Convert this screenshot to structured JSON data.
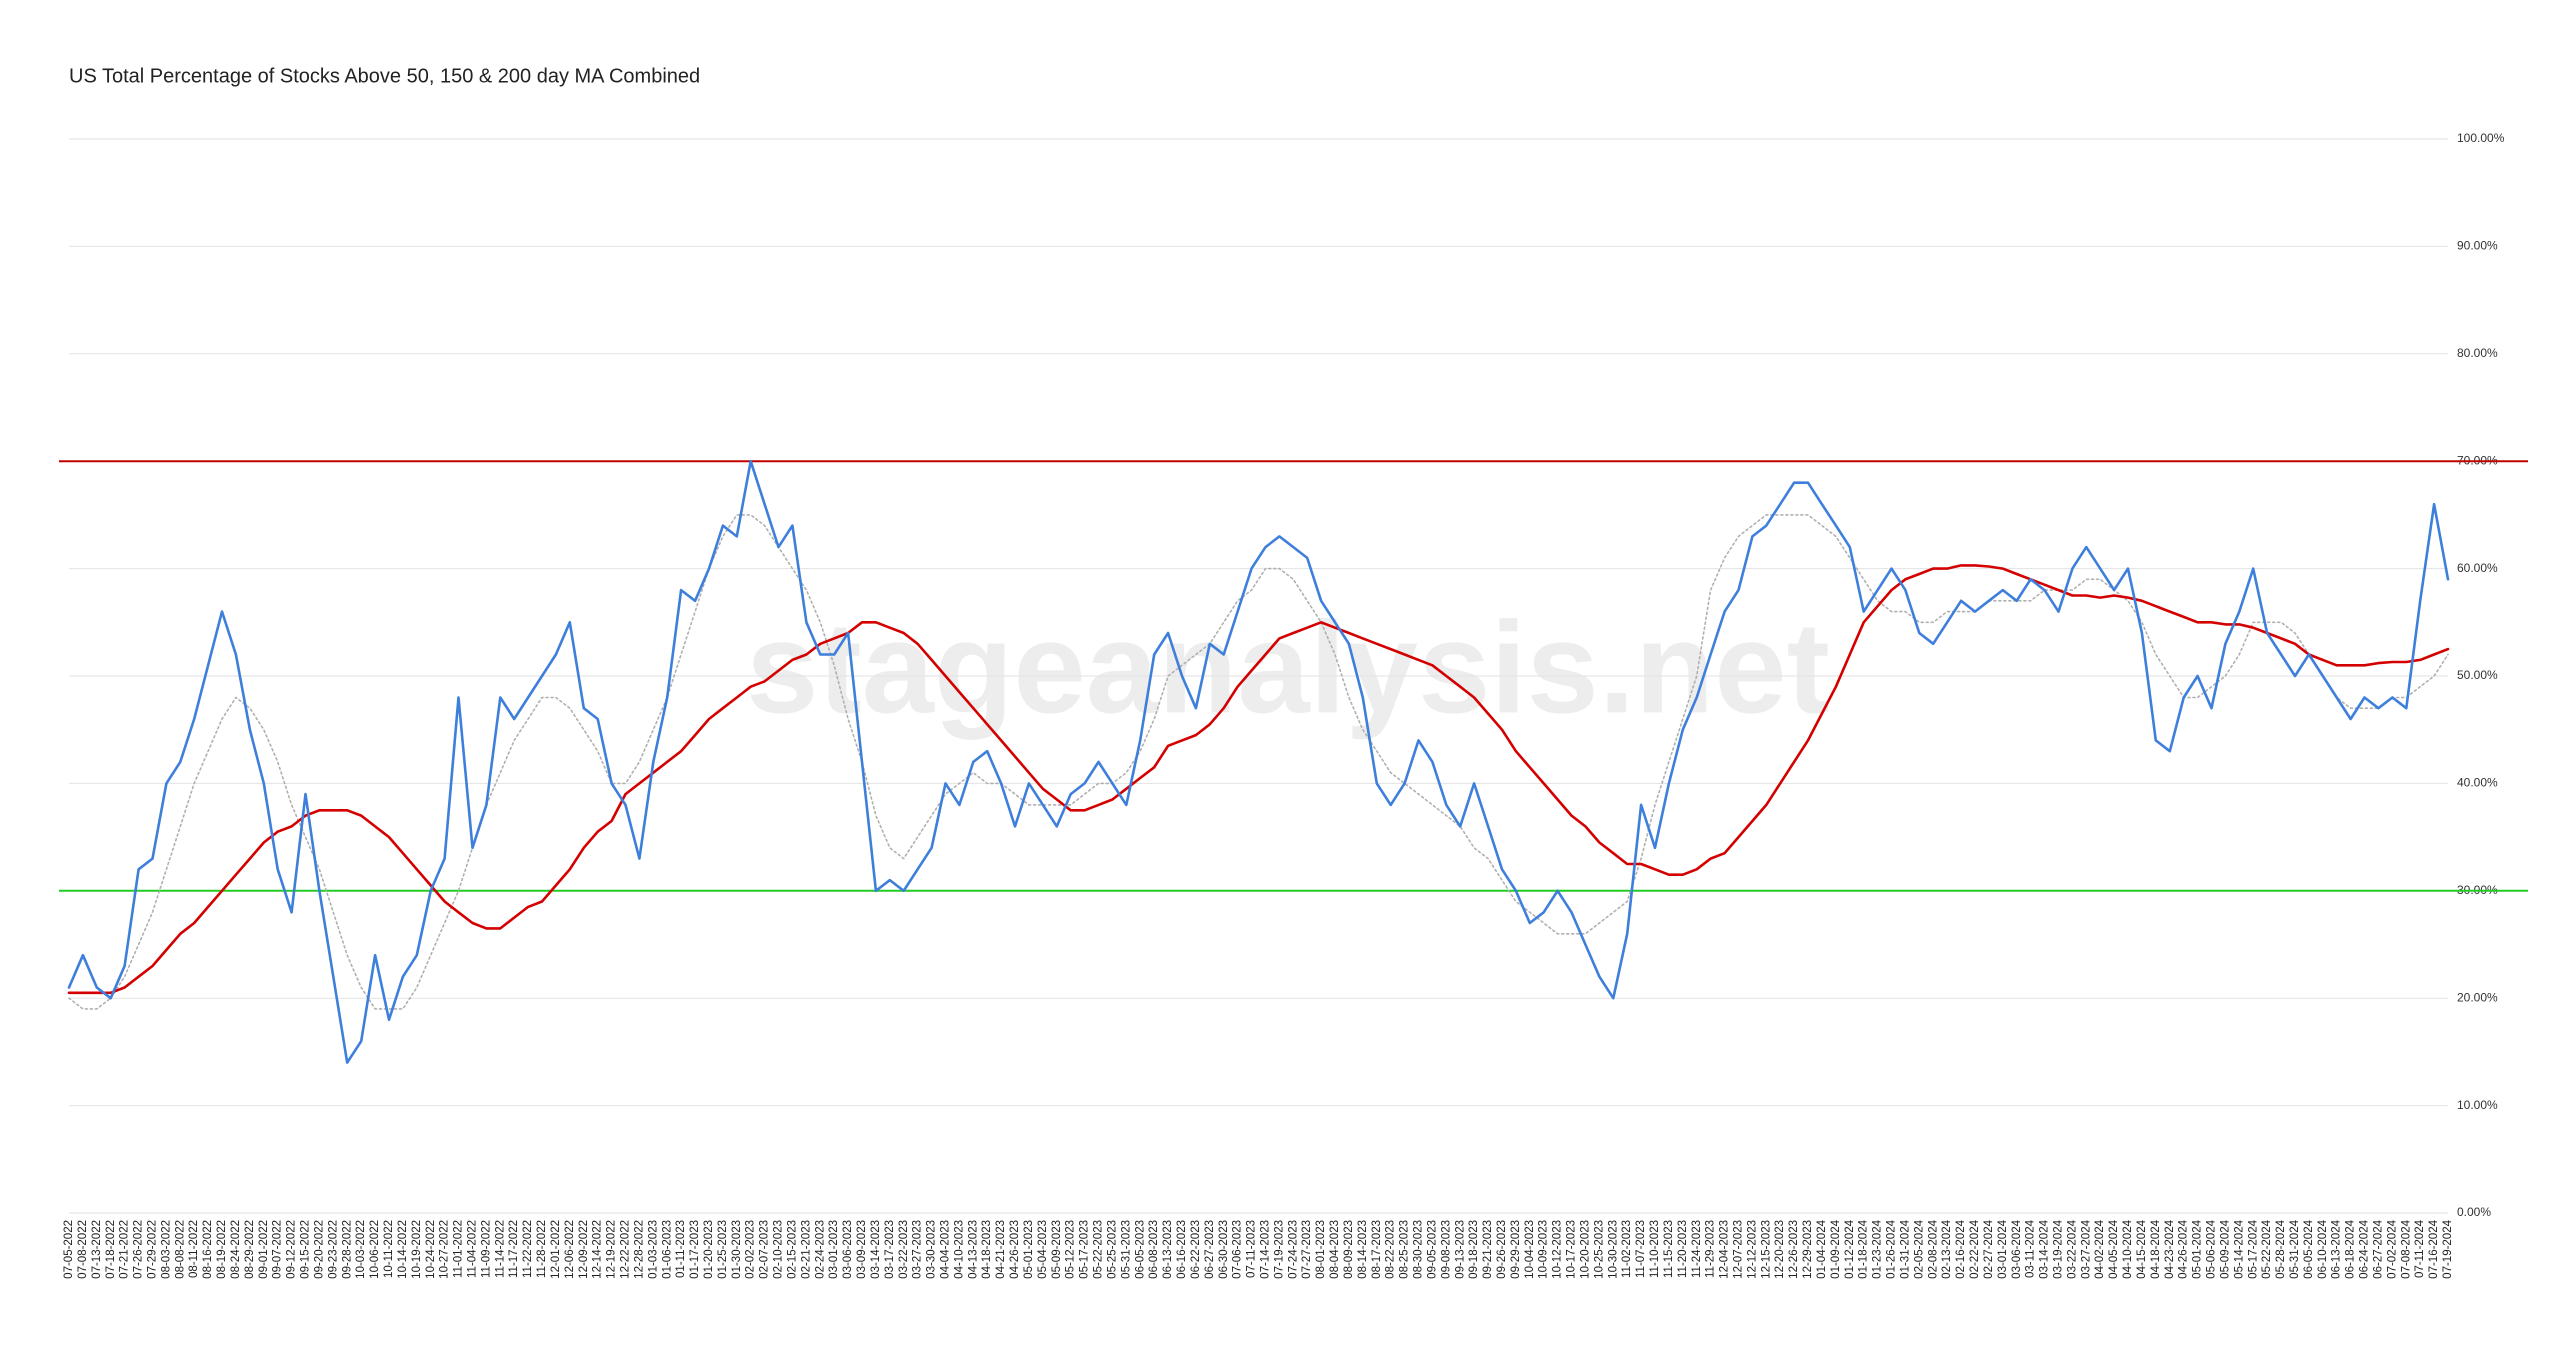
{
  "chart_data": {
    "type": "line",
    "title": "US Total Percentage of Stocks Above 50, 150 & 200 day MA Combined",
    "watermark": "stageanalysis.net",
    "categories": [
      "07-05-2022",
      "07-08-2022",
      "07-13-2022",
      "07-18-2022",
      "07-21-2022",
      "07-26-2022",
      "07-29-2022",
      "08-03-2022",
      "08-08-2022",
      "08-11-2022",
      "08-16-2022",
      "08-19-2022",
      "08-24-2022",
      "08-29-2022",
      "09-01-2022",
      "09-07-2022",
      "09-12-2022",
      "09-15-2022",
      "09-20-2022",
      "09-23-2022",
      "09-28-2022",
      "10-03-2022",
      "10-06-2022",
      "10-11-2022",
      "10-14-2022",
      "10-19-2022",
      "10-24-2022",
      "10-27-2022",
      "11-01-2022",
      "11-04-2022",
      "11-09-2022",
      "11-14-2022",
      "11-17-2022",
      "11-22-2022",
      "11-28-2022",
      "12-01-2022",
      "12-06-2022",
      "12-09-2022",
      "12-14-2022",
      "12-19-2022",
      "12-22-2022",
      "12-28-2022",
      "01-03-2023",
      "01-06-2023",
      "01-11-2023",
      "01-17-2023",
      "01-20-2023",
      "01-25-2023",
      "01-30-2023",
      "02-02-2023",
      "02-07-2023",
      "02-10-2023",
      "02-15-2023",
      "02-21-2023",
      "02-24-2023",
      "03-01-2023",
      "03-06-2023",
      "03-09-2023",
      "03-14-2023",
      "03-17-2023",
      "03-22-2023",
      "03-27-2023",
      "03-30-2023",
      "04-04-2023",
      "04-10-2023",
      "04-13-2023",
      "04-18-2023",
      "04-21-2023",
      "04-26-2023",
      "05-01-2023",
      "05-04-2023",
      "05-09-2023",
      "05-12-2023",
      "05-17-2023",
      "05-22-2023",
      "05-25-2023",
      "05-31-2023",
      "06-05-2023",
      "06-08-2023",
      "06-13-2023",
      "06-16-2023",
      "06-22-2023",
      "06-27-2023",
      "06-30-2023",
      "07-06-2023",
      "07-11-2023",
      "07-14-2023",
      "07-19-2023",
      "07-24-2023",
      "07-27-2023",
      "08-01-2023",
      "08-04-2023",
      "08-09-2023",
      "08-14-2023",
      "08-17-2023",
      "08-22-2023",
      "08-25-2023",
      "08-30-2023",
      "09-05-2023",
      "09-08-2023",
      "09-13-2023",
      "09-18-2023",
      "09-21-2023",
      "09-26-2023",
      "09-29-2023",
      "10-04-2023",
      "10-09-2023",
      "10-12-2023",
      "10-17-2023",
      "10-20-2023",
      "10-25-2023",
      "10-30-2023",
      "11-02-2023",
      "11-07-2023",
      "11-10-2023",
      "11-15-2023",
      "11-20-2023",
      "11-24-2023",
      "11-29-2023",
      "12-04-2023",
      "12-07-2023",
      "12-12-2023",
      "12-15-2023",
      "12-20-2023",
      "12-26-2023",
      "12-29-2023",
      "01-04-2024",
      "01-09-2024",
      "01-12-2024",
      "01-18-2024",
      "01-23-2024",
      "01-26-2024",
      "01-31-2024",
      "02-05-2024",
      "02-08-2024",
      "02-13-2024",
      "02-16-2024",
      "02-22-2024",
      "02-27-2024",
      "03-01-2024",
      "03-06-2024",
      "03-11-2024",
      "03-14-2024",
      "03-19-2024",
      "03-22-2024",
      "03-27-2024",
      "04-02-2024",
      "04-05-2024",
      "04-10-2024",
      "04-15-2024",
      "04-18-2024",
      "04-23-2024",
      "04-26-2024",
      "05-01-2024",
      "05-06-2024",
      "05-09-2024",
      "05-14-2024",
      "05-17-2024",
      "05-22-2024",
      "05-28-2024",
      "05-31-2024",
      "06-05-2024",
      "06-10-2024",
      "06-13-2024",
      "06-18-2024",
      "06-24-2024",
      "06-27-2024",
      "07-02-2024",
      "07-08-2024",
      "07-11-2024",
      "07-16-2024",
      "07-19-2024"
    ],
    "series": [
      {
        "color": "#b0b0b0",
        "style": "dotted",
        "values": [
          20,
          19,
          19,
          20,
          22,
          25,
          28,
          32,
          36,
          40,
          43,
          46,
          48,
          47,
          45,
          42,
          38,
          35,
          32,
          28,
          24,
          21,
          19,
          19,
          19,
          21,
          24,
          27,
          30,
          34,
          38,
          41,
          44,
          46,
          48,
          48,
          47,
          45,
          43,
          40,
          40,
          42,
          45,
          48,
          52,
          56,
          60,
          63,
          65,
          65,
          64,
          62,
          60,
          58,
          55,
          51,
          46,
          42,
          37,
          34,
          33,
          35,
          37,
          39,
          40,
          41,
          40,
          40,
          39,
          38,
          38,
          38,
          38,
          39,
          40,
          40,
          41,
          43,
          46,
          50,
          51,
          52,
          53,
          55,
          57,
          58,
          60,
          60,
          59,
          57,
          55,
          52,
          48,
          45,
          43,
          41,
          40,
          39,
          38,
          37,
          36,
          34,
          33,
          31,
          29,
          28,
          27,
          26,
          26,
          26,
          27,
          28,
          29,
          33,
          38,
          42,
          46,
          50,
          58,
          61,
          63,
          64,
          65,
          65,
          65,
          65,
          64,
          63,
          61,
          59,
          57,
          56,
          56,
          55,
          55,
          56,
          56,
          56,
          57,
          57,
          57,
          57,
          58,
          58,
          58,
          59,
          59,
          58,
          57,
          55,
          52,
          50,
          48,
          48,
          49,
          50,
          52,
          55,
          55,
          55,
          54,
          52,
          50,
          48,
          47,
          47,
          47,
          48,
          48,
          49,
          50,
          52
        ]
      },
      {
        "color": "#d40000",
        "style": "solid",
        "values": [
          20.5,
          20.5,
          20.5,
          20.5,
          21,
          22,
          23,
          24.5,
          26,
          27,
          28.5,
          30,
          31.5,
          33,
          34.5,
          35.5,
          36,
          37,
          37.5,
          37.5,
          37.5,
          37,
          36,
          35,
          33.5,
          32,
          30.5,
          29,
          28,
          27,
          26.5,
          26.5,
          27.5,
          28.5,
          29,
          30.5,
          32,
          34,
          35.5,
          36.5,
          39,
          40,
          41,
          42,
          43,
          44.5,
          46,
          47,
          48,
          49,
          49.5,
          50.5,
          51.5,
          52,
          53,
          53.5,
          54,
          55,
          55,
          54.5,
          54,
          53,
          51.5,
          50,
          48.5,
          47,
          45.5,
          44,
          42.5,
          41,
          39.5,
          38.5,
          37.5,
          37.5,
          38,
          38.5,
          39.5,
          40.5,
          41.5,
          43.5,
          44,
          44.5,
          45.5,
          47,
          49,
          50.5,
          52,
          53.5,
          54,
          54.5,
          55,
          54.5,
          54,
          53.5,
          53,
          52.5,
          52,
          51.5,
          51,
          50,
          49,
          48,
          46.5,
          45,
          43,
          41.5,
          40,
          38.5,
          37,
          36,
          34.5,
          33.5,
          32.5,
          32.5,
          32,
          31.5,
          31.5,
          32,
          33,
          33.5,
          35,
          36.5,
          38,
          40,
          42,
          44,
          46.5,
          49,
          52,
          55,
          56.5,
          58,
          59,
          59.5,
          60,
          60,
          60.3,
          60.3,
          60.2,
          60,
          59.5,
          59,
          58.5,
          58,
          57.5,
          57.5,
          57.3,
          57.5,
          57.3,
          57,
          56.5,
          56,
          55.5,
          55,
          55,
          54.8,
          54.8,
          54.5,
          54,
          53.5,
          53,
          52,
          51.5,
          51,
          51,
          51,
          51.2,
          51.3,
          51.3,
          51.5,
          52,
          52.5
        ]
      },
      {
        "color": "#3d7fdb",
        "style": "solid",
        "values": [
          21,
          24,
          21,
          20,
          23,
          32,
          33,
          40,
          42,
          46,
          51,
          56,
          52,
          45,
          40,
          32,
          28,
          39,
          30,
          22,
          14,
          16,
          24,
          18,
          22,
          24,
          30,
          33,
          48,
          34,
          38,
          48,
          46,
          48,
          50,
          52,
          55,
          47,
          46,
          40,
          38,
          33,
          42,
          48,
          58,
          57,
          60,
          64,
          63,
          70,
          66,
          62,
          64,
          55,
          52,
          52,
          54,
          42,
          30,
          31,
          30,
          32,
          34,
          40,
          38,
          42,
          43,
          40,
          36,
          40,
          38,
          36,
          39,
          40,
          42,
          40,
          38,
          44,
          52,
          54,
          50,
          47,
          53,
          52,
          56,
          60,
          62,
          63,
          62,
          61,
          57,
          55,
          53,
          48,
          40,
          38,
          40,
          44,
          42,
          38,
          36,
          40,
          36,
          32,
          30,
          27,
          28,
          30,
          28,
          25,
          22,
          20,
          26,
          38,
          34,
          40,
          45,
          48,
          52,
          56,
          58,
          63,
          64,
          66,
          68,
          68,
          66,
          64,
          62,
          56,
          58,
          60,
          58,
          54,
          53,
          55,
          57,
          56,
          57,
          58,
          57,
          59,
          58,
          56,
          60,
          62,
          60,
          58,
          60,
          54,
          44,
          43,
          48,
          50,
          47,
          53,
          56,
          60,
          54,
          52,
          50,
          52,
          50,
          48,
          46,
          48,
          47,
          48,
          47,
          57,
          66,
          59
        ]
      }
    ],
    "reference_lines": [
      {
        "value": 70,
        "color": "#c00000"
      },
      {
        "value": 30,
        "color": "#22cc22"
      }
    ],
    "ylim": [
      0,
      100
    ],
    "yticks": [
      {
        "value": 0,
        "label": "0.00%"
      },
      {
        "value": 10,
        "label": "10.00%"
      },
      {
        "value": 20,
        "label": "20.00%"
      },
      {
        "value": 30,
        "label": "30.00%"
      },
      {
        "value": 40,
        "label": "40.00%"
      },
      {
        "value": 50,
        "label": "50.00%"
      },
      {
        "value": 60,
        "label": "60.00%"
      },
      {
        "value": 70,
        "label": "70.00%"
      },
      {
        "value": 80,
        "label": "80.00%"
      },
      {
        "value": 90,
        "label": "90.00%"
      },
      {
        "value": 100,
        "label": "100.00%"
      }
    ],
    "grid": true
  }
}
